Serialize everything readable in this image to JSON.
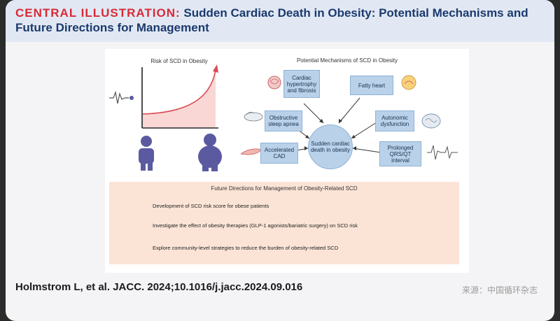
{
  "header": {
    "label": "CENTRAL ILLUSTRATION:",
    "title": "Sudden Cardiac Death in Obesity: Potential Mechanisms and Future Directions for Management"
  },
  "risk_chart": {
    "title": "Risk of SCD in Obesity"
  },
  "mechanisms": {
    "title": "Potential Mechanisms of SCD in Obesity",
    "center": "Sudden cardiac death in obesity",
    "items": [
      "Cardiac hypertrophy and fibrosis",
      "Fatty heart",
      "Obstructive sleep apnea",
      "Autonomic dysfunction",
      "Accelerated CAD",
      "Prolonged QRS/QT interval"
    ]
  },
  "future": {
    "title": "Future Directions for Management of Obesity-Related SCD",
    "items": [
      "Development of SCD risk score for obese patients",
      "Investigate the effect of obesity therapies (GLP-1 agonists/bariatric surgery) on SCD risk",
      "Explore community-level strategies to reduce the burden of obesity-related SCD"
    ]
  },
  "citation": "Holmstrom L, et al. JACC. 2024;10.1016/j.jacc.2024.09.016",
  "source": "来源：中国循环杂志",
  "colors": {
    "title_red": "#d72a37",
    "title_navy": "#1a3a6e",
    "box_blue": "#b9d2ea",
    "future_bg": "#fbe4d6",
    "person_purple": "#5b5aa0"
  }
}
